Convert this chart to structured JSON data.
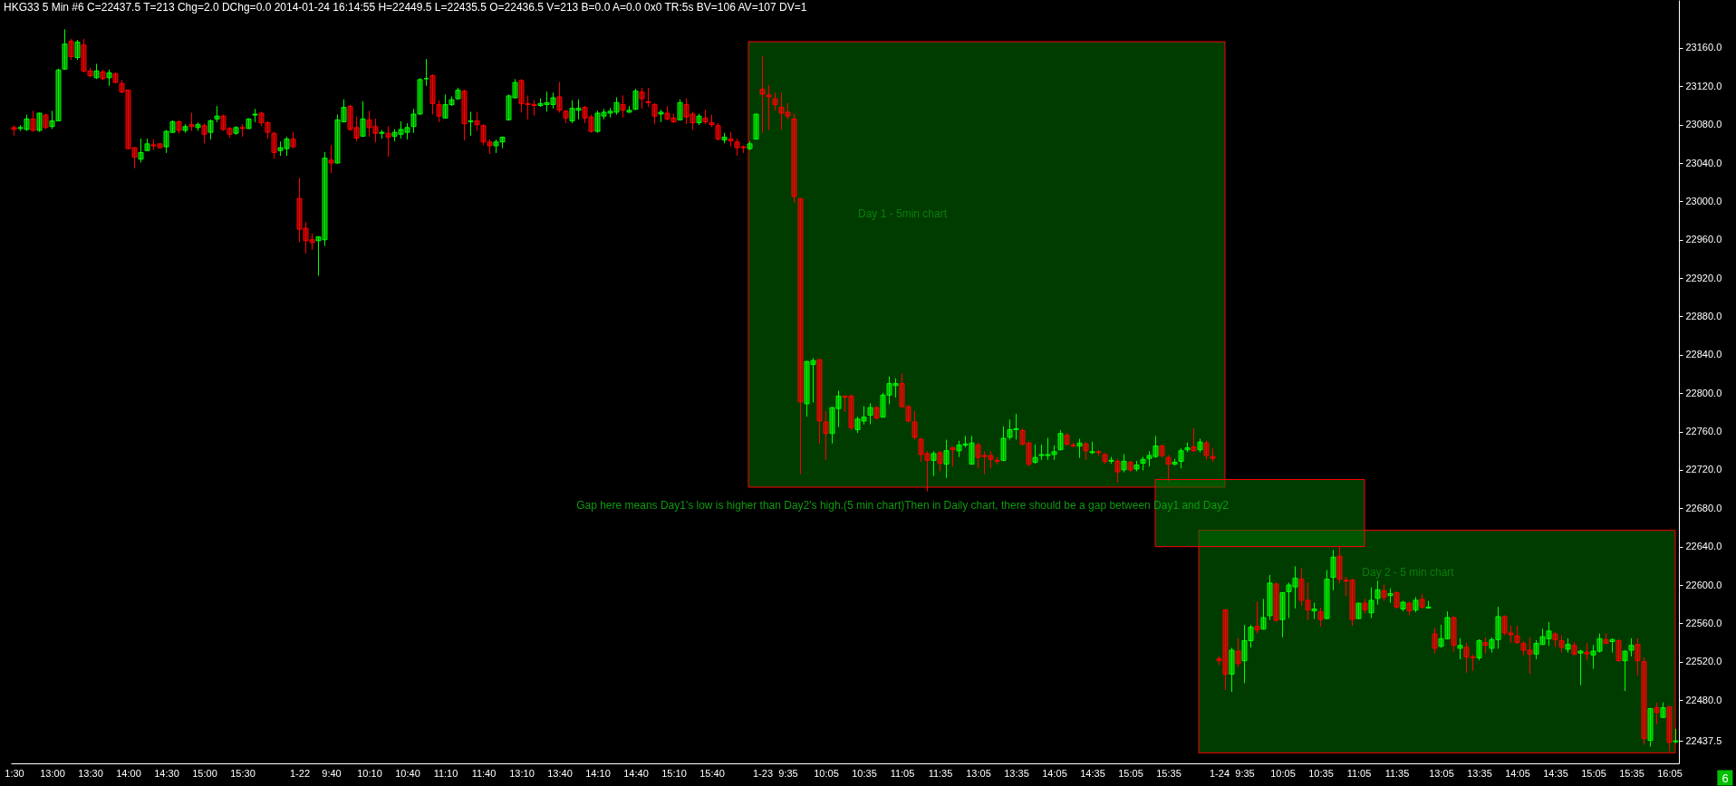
{
  "chart_data": {
    "type": "candlestick",
    "title": "HKG33 5 Min #6 C=22437.5 T=213 Chg=2.0 DChg=0.0 2014-01-24 16:14:55 H=22449.5 L=22435.5 O=22436.5 V=213 B=0.0 A=0.0 0x0 TR:5s BV=106 AV=107 DV=1",
    "categories": [
      "1:30",
      null,
      null,
      null,
      null,
      null,
      "13:00",
      null,
      null,
      null,
      null,
      null,
      "13:30",
      null,
      null,
      null,
      null,
      null,
      "14:00",
      null,
      null,
      null,
      null,
      null,
      "14:30",
      null,
      null,
      null,
      null,
      null,
      "15:00",
      null,
      null,
      null,
      null,
      null,
      "15:30",
      null,
      null,
      null,
      null,
      null,
      null,
      null,
      null,
      "1-22",
      null,
      null,
      null,
      null,
      "9:40",
      null,
      null,
      null,
      null,
      null,
      "10:10",
      null,
      null,
      null,
      null,
      null,
      "10:40",
      null,
      null,
      null,
      null,
      null,
      "11:10",
      null,
      null,
      null,
      null,
      null,
      "11:40",
      null,
      null,
      null,
      null,
      null,
      "13:10",
      null,
      null,
      null,
      null,
      null,
      "13:40",
      null,
      null,
      null,
      null,
      null,
      "14:10",
      null,
      null,
      null,
      null,
      null,
      "14:40",
      null,
      null,
      null,
      null,
      null,
      "15:10",
      null,
      null,
      null,
      null,
      null,
      "15:40",
      null,
      null,
      null,
      null,
      null,
      null,
      null,
      "1-23",
      null,
      null,
      null,
      "9:35",
      null,
      null,
      null,
      null,
      null,
      "10:05",
      null,
      null,
      null,
      null,
      null,
      "10:35",
      null,
      null,
      null,
      null,
      null,
      "11:05",
      null,
      null,
      null,
      null,
      null,
      "11:35",
      null,
      null,
      null,
      null,
      null,
      "13:05",
      null,
      null,
      null,
      null,
      null,
      "13:35",
      null,
      null,
      null,
      null,
      null,
      "14:05",
      null,
      null,
      null,
      null,
      null,
      "14:35",
      null,
      null,
      null,
      null,
      null,
      "15:05",
      null,
      null,
      null,
      null,
      null,
      "15:35",
      null,
      null,
      null,
      null,
      null,
      null,
      null,
      "1-24",
      null,
      null,
      null,
      "9:35",
      null,
      null,
      null,
      null,
      null,
      "10:05",
      null,
      null,
      null,
      null,
      null,
      "10:35",
      null,
      null,
      null,
      null,
      null,
      "11:05",
      null,
      null,
      null,
      null,
      null,
      "11:35",
      null,
      null,
      null,
      null,
      null,
      null,
      "13:05",
      null,
      null,
      null,
      null,
      null,
      "13:35",
      null,
      null,
      null,
      null,
      null,
      "14:05",
      null,
      null,
      null,
      null,
      null,
      "14:35",
      null,
      null,
      null,
      null,
      null,
      "15:05",
      null,
      null,
      null,
      null,
      null,
      "15:35",
      null,
      null,
      null,
      null,
      null,
      "16:05",
      null
    ],
    "ohlc": [
      [
        23077,
        23079,
        23069,
        23075
      ],
      [
        23076,
        23079,
        23074,
        23077
      ],
      [
        23075,
        23090,
        23074,
        23086
      ],
      [
        23086,
        23094,
        23073,
        23074
      ],
      [
        23074,
        23092,
        23073,
        23092
      ],
      [
        23090,
        23091,
        23076,
        23077
      ],
      [
        23078,
        23094,
        23076,
        23084
      ],
      [
        23084,
        23138,
        23084,
        23137
      ],
      [
        23138,
        23179,
        23138,
        23164
      ],
      [
        23167,
        23169,
        23148,
        23151
      ],
      [
        23150,
        23168,
        23148,
        23166
      ],
      [
        23163,
        23169,
        23135,
        23136
      ],
      [
        23136,
        23139,
        23130,
        23131
      ],
      [
        23129,
        23143,
        23128,
        23136
      ],
      [
        23135,
        23137,
        23127,
        23128
      ],
      [
        23129,
        23137,
        23121,
        23134
      ],
      [
        23133,
        23134,
        23124,
        23124
      ],
      [
        23123,
        23126,
        23113,
        23114
      ],
      [
        23116,
        23116,
        23055,
        23055
      ],
      [
        23056,
        23056,
        23035,
        23046
      ],
      [
        23044,
        23065,
        23041,
        23051
      ],
      [
        23053,
        23065,
        23053,
        23060
      ],
      [
        23059,
        23064,
        23054,
        23058
      ],
      [
        23060,
        23060,
        23056,
        23056
      ],
      [
        23057,
        23074,
        23051,
        23073
      ],
      [
        23072,
        23084,
        23072,
        23083
      ],
      [
        23083,
        23084,
        23071,
        23074
      ],
      [
        23074,
        23080,
        23072,
        23078
      ],
      [
        23080,
        23092,
        23074,
        23078
      ],
      [
        23077,
        23082,
        23074,
        23080
      ],
      [
        23079,
        23081,
        23061,
        23070
      ],
      [
        23072,
        23085,
        23065,
        23084
      ],
      [
        23086,
        23099,
        23083,
        23089
      ],
      [
        23089,
        23090,
        23074,
        23075
      ],
      [
        23076,
        23077,
        23067,
        23070
      ],
      [
        23071,
        23078,
        23070,
        23077
      ],
      [
        23077,
        23080,
        23068,
        23076
      ],
      [
        23076,
        23086,
        23076,
        23086
      ],
      [
        23090,
        23096,
        23083,
        23091
      ],
      [
        23092,
        23093,
        23079,
        23082
      ],
      [
        23082,
        23083,
        23066,
        23072
      ],
      [
        23071,
        23072,
        23045,
        23051
      ],
      [
        23053,
        23062,
        23048,
        23056
      ],
      [
        23055,
        23067,
        23048,
        23065
      ],
      [
        23065,
        23072,
        23056,
        23057
      ],
      [
        23003,
        23024,
        22958,
        22971
      ],
      [
        22972,
        22978,
        22946,
        22959
      ],
      [
        22960,
        22966,
        22950,
        22957
      ],
      [
        22959,
        22963,
        22923,
        22963
      ],
      [
        22960,
        23051,
        22954,
        23045
      ],
      [
        23043,
        23058,
        23030,
        23040
      ],
      [
        23040,
        23090,
        23040,
        23085
      ],
      [
        23083,
        23106,
        23083,
        23098
      ],
      [
        23099,
        23100,
        23074,
        23075
      ],
      [
        23077,
        23088,
        23063,
        23066
      ],
      [
        23068,
        23104,
        23068,
        23086
      ],
      [
        23085,
        23094,
        23068,
        23077
      ],
      [
        23078,
        23086,
        23062,
        23071
      ],
      [
        23071,
        23074,
        23066,
        23072
      ],
      [
        23071,
        23078,
        23047,
        23067
      ],
      [
        23068,
        23075,
        23063,
        23072
      ],
      [
        23070,
        23083,
        23066,
        23075
      ],
      [
        23072,
        23081,
        23065,
        23077
      ],
      [
        23078,
        23096,
        23072,
        23091
      ],
      [
        23091,
        23128,
        23091,
        23127
      ],
      [
        23128,
        23148,
        23121,
        23128
      ],
      [
        23131,
        23132,
        23091,
        23102
      ],
      [
        23101,
        23105,
        23083,
        23089
      ],
      [
        23087,
        23111,
        23087,
        23101
      ],
      [
        23101,
        23109,
        23100,
        23106
      ],
      [
        23107,
        23118,
        23107,
        23116
      ],
      [
        23115,
        23116,
        23064,
        23081
      ],
      [
        23083,
        23093,
        23069,
        23084
      ],
      [
        23084,
        23093,
        23074,
        23080
      ],
      [
        23079,
        23080,
        23059,
        23062
      ],
      [
        23062,
        23064,
        23050,
        23058
      ],
      [
        23058,
        23064,
        23051,
        23062
      ],
      [
        23062,
        23067,
        23056,
        23067
      ],
      [
        23085,
        23111,
        23085,
        23110
      ],
      [
        23108,
        23127,
        23108,
        23124
      ],
      [
        23126,
        23127,
        23093,
        23102
      ],
      [
        23102,
        23110,
        23086,
        23101
      ],
      [
        23101,
        23105,
        23090,
        23100
      ],
      [
        23100,
        23107,
        23099,
        23102
      ],
      [
        23101,
        23114,
        23094,
        23103
      ],
      [
        23101,
        23113,
        23097,
        23108
      ],
      [
        23109,
        23124,
        23093,
        23095
      ],
      [
        23094,
        23095,
        23082,
        23087
      ],
      [
        23084,
        23105,
        23082,
        23097
      ],
      [
        23095,
        23106,
        23086,
        23097
      ],
      [
        23098,
        23099,
        23082,
        23087
      ],
      [
        23088,
        23090,
        23072,
        23073
      ],
      [
        23073,
        23094,
        23072,
        23092
      ],
      [
        23089,
        23096,
        23086,
        23093
      ],
      [
        23092,
        23097,
        23088,
        23094
      ],
      [
        23093,
        23108,
        23091,
        23103
      ],
      [
        23101,
        23110,
        23088,
        23095
      ],
      [
        23093,
        23099,
        23093,
        23095
      ],
      [
        23096,
        23117,
        23096,
        23115
      ],
      [
        23114,
        23118,
        23097,
        23107
      ],
      [
        23104,
        23118,
        23099,
        23103
      ],
      [
        23101,
        23102,
        23081,
        23089
      ],
      [
        23091,
        23095,
        23083,
        23093
      ],
      [
        23092,
        23099,
        23085,
        23086
      ],
      [
        23087,
        23091,
        23082,
        23083
      ],
      [
        23085,
        23106,
        23085,
        23103
      ],
      [
        23101,
        23107,
        23081,
        23088
      ],
      [
        23091,
        23093,
        23075,
        23082
      ],
      [
        23082,
        23091,
        23080,
        23089
      ],
      [
        23087,
        23095,
        23081,
        23083
      ],
      [
        23082,
        23090,
        23078,
        23080
      ],
      [
        23079,
        23081,
        23064,
        23065
      ],
      [
        23064,
        23071,
        23061,
        23067
      ],
      [
        23065,
        23072,
        23058,
        23063
      ],
      [
        23062,
        23065,
        23048,
        23056
      ],
      [
        23057,
        23058,
        23051,
        23056
      ],
      [
        23055,
        23062,
        23054,
        23060
      ],
      [
        23065,
        23091,
        23065,
        23091
      ],
      [
        23117,
        23151,
        23072,
        23112
      ],
      [
        23111,
        23121,
        23075,
        23109
      ],
      [
        23107,
        23113,
        23095,
        23101
      ],
      [
        23098,
        23113,
        23075,
        23092
      ],
      [
        23093,
        23102,
        23086,
        23089
      ],
      [
        23086,
        23091,
        22999,
        23005
      ],
      [
        23003,
        23003,
        22716,
        22791
      ],
      [
        22789,
        22833,
        22776,
        22833
      ],
      [
        22830,
        22836,
        22791,
        22834
      ],
      [
        22835,
        22835,
        22748,
        22771
      ],
      [
        22770,
        22781,
        22731,
        22758
      ],
      [
        22758,
        22785,
        22748,
        22785
      ],
      [
        22784,
        22802,
        22765,
        22797
      ],
      [
        22797,
        22797,
        22781,
        22796
      ],
      [
        22797,
        22798,
        22762,
        22764
      ],
      [
        22762,
        22775,
        22759,
        22773
      ],
      [
        22771,
        22786,
        22768,
        22775
      ],
      [
        22777,
        22789,
        22768,
        22785
      ],
      [
        22785,
        22786,
        22773,
        22774
      ],
      [
        22775,
        22800,
        22775,
        22798
      ],
      [
        22798,
        22817,
        22789,
        22810
      ],
      [
        22808,
        22815,
        22796,
        22810
      ],
      [
        22810,
        22820,
        22785,
        22786
      ],
      [
        22786,
        22787,
        22770,
        22771
      ],
      [
        22770,
        22781,
        22752,
        22754
      ],
      [
        22752,
        22753,
        22729,
        22736
      ],
      [
        22737,
        22739,
        22698,
        22730
      ],
      [
        22730,
        22739,
        22714,
        22737
      ],
      [
        22738,
        22739,
        22719,
        22727
      ],
      [
        22726,
        22751,
        22712,
        22740
      ],
      [
        22743,
        22744,
        22724,
        22741
      ],
      [
        22740,
        22750,
        22734,
        22746
      ],
      [
        22746,
        22755,
        22744,
        22747
      ],
      [
        22726,
        22755,
        22726,
        22748
      ],
      [
        22746,
        22748,
        22722,
        22733
      ],
      [
        22735,
        22739,
        22716,
        22734
      ],
      [
        22735,
        22739,
        22722,
        22731
      ],
      [
        22730,
        22733,
        22726,
        22729
      ],
      [
        22730,
        22765,
        22730,
        22753
      ],
      [
        22754,
        22772,
        22752,
        22762
      ],
      [
        22762,
        22778,
        22752,
        22763
      ],
      [
        22761,
        22763,
        22746,
        22747
      ],
      [
        22748,
        22749,
        22724,
        22726
      ],
      [
        22728,
        22746,
        22727,
        22733
      ],
      [
        22735,
        22746,
        22731,
        22736
      ],
      [
        22735,
        22753,
        22731,
        22736
      ],
      [
        22736,
        22745,
        22731,
        22739
      ],
      [
        22741,
        22761,
        22741,
        22758
      ],
      [
        22756,
        22758,
        22746,
        22747
      ],
      [
        22746,
        22748,
        22744,
        22745
      ],
      [
        22745,
        22752,
        22733,
        22748
      ],
      [
        22747,
        22749,
        22731,
        22740
      ],
      [
        22738,
        22749,
        22737,
        22739
      ],
      [
        22739,
        22740,
        22735,
        22738
      ],
      [
        22736,
        22737,
        22727,
        22729
      ],
      [
        22729,
        22733,
        22727,
        22730
      ],
      [
        22729,
        22731,
        22707,
        22718
      ],
      [
        22720,
        22736,
        22718,
        22729
      ],
      [
        22728,
        22729,
        22718,
        22720
      ],
      [
        22721,
        22729,
        22719,
        22725
      ],
      [
        22727,
        22733,
        22720,
        22731
      ],
      [
        22732,
        22739,
        22724,
        22735
      ],
      [
        22734,
        22755,
        22733,
        22745
      ],
      [
        22745,
        22746,
        22733,
        22735
      ],
      [
        22733,
        22735,
        22709,
        22726
      ],
      [
        22726,
        22731,
        22725,
        22728
      ],
      [
        22729,
        22742,
        22722,
        22740
      ],
      [
        22741,
        22748,
        22739,
        22743
      ],
      [
        22744,
        22763,
        22739,
        22740
      ],
      [
        22741,
        22752,
        22739,
        22749
      ],
      [
        22748,
        22750,
        22731,
        22735
      ],
      [
        22734,
        22742,
        22729,
        22732
      ],
      [
        22523,
        22525,
        22517,
        22521
      ],
      [
        22574,
        22574,
        22491,
        22507
      ],
      [
        22507,
        22534,
        22489,
        22532
      ],
      [
        22531,
        22544,
        22515,
        22518
      ],
      [
        22521,
        22558,
        22498,
        22542
      ],
      [
        22542,
        22558,
        22535,
        22556
      ],
      [
        22557,
        22582,
        22550,
        22553
      ],
      [
        22554,
        22585,
        22554,
        22566
      ],
      [
        22568,
        22610,
        22564,
        22602
      ],
      [
        22601,
        22602,
        22563,
        22563
      ],
      [
        22564,
        22592,
        22546,
        22592
      ],
      [
        22593,
        22602,
        22566,
        22600
      ],
      [
        22598,
        22619,
        22576,
        22607
      ],
      [
        22606,
        22617,
        22579,
        22584
      ],
      [
        22584,
        22602,
        22564,
        22574
      ],
      [
        22573,
        22581,
        22565,
        22575
      ],
      [
        22572,
        22576,
        22557,
        22564
      ],
      [
        22565,
        22615,
        22565,
        22606
      ],
      [
        22608,
        22636,
        22595,
        22629
      ],
      [
        22630,
        22640,
        22602,
        22606
      ],
      [
        22605,
        22608,
        22589,
        22604
      ],
      [
        22605,
        22606,
        22558,
        22564
      ],
      [
        22565,
        22581,
        22565,
        22581
      ],
      [
        22581,
        22585,
        22571,
        22574
      ],
      [
        22571,
        22597,
        22566,
        22584
      ],
      [
        22586,
        22604,
        22580,
        22595
      ],
      [
        22594,
        22600,
        22584,
        22587
      ],
      [
        22589,
        22596,
        22582,
        22591
      ],
      [
        22592,
        22593,
        22576,
        22577
      ],
      [
        22575,
        22583,
        22573,
        22582
      ],
      [
        22581,
        22582,
        22569,
        22573
      ],
      [
        22574,
        22587,
        22572,
        22584
      ],
      [
        22585,
        22590,
        22576,
        22577
      ],
      [
        22576,
        22583,
        22576,
        22577
      ],
      [
        22549,
        22555,
        22529,
        22534
      ],
      [
        22536,
        22558,
        22535,
        22544
      ],
      [
        22544,
        22572,
        22544,
        22566
      ],
      [
        22566,
        22567,
        22531,
        22537
      ],
      [
        22534,
        22544,
        22523,
        22537
      ],
      [
        22535,
        22539,
        22509,
        22525
      ],
      [
        22525,
        22527,
        22511,
        22524
      ],
      [
        22524,
        22543,
        22522,
        22542
      ],
      [
        22540,
        22545,
        22529,
        22537
      ],
      [
        22534,
        22545,
        22530,
        22543
      ],
      [
        22543,
        22577,
        22534,
        22567
      ],
      [
        22567,
        22568,
        22548,
        22550
      ],
      [
        22550,
        22557,
        22540,
        22548
      ],
      [
        22547,
        22557,
        22539,
        22540
      ],
      [
        22539,
        22541,
        22527,
        22532
      ],
      [
        22532,
        22545,
        22508,
        22528
      ],
      [
        22528,
        22542,
        22523,
        22539
      ],
      [
        22538,
        22554,
        22538,
        22546
      ],
      [
        22544,
        22561,
        22537,
        22552
      ],
      [
        22549,
        22550,
        22536,
        22543
      ],
      [
        22542,
        22547,
        22530,
        22535
      ],
      [
        22533,
        22544,
        22530,
        22538
      ],
      [
        22537,
        22540,
        22527,
        22528
      ],
      [
        22529,
        22532,
        22496,
        22531
      ],
      [
        22530,
        22539,
        22522,
        22528
      ],
      [
        22527,
        22537,
        22513,
        22531
      ],
      [
        22531,
        22549,
        22530,
        22544
      ],
      [
        22543,
        22549,
        22539,
        22539
      ],
      [
        22541,
        22544,
        22530,
        22543
      ],
      [
        22542,
        22543,
        22521,
        22521
      ],
      [
        22521,
        22531,
        22490,
        22531
      ],
      [
        22532,
        22544,
        22526,
        22537
      ],
      [
        22538,
        22544,
        22506,
        22521
      ],
      [
        22520,
        22524,
        22434,
        22440
      ],
      [
        22438,
        22471,
        22432,
        22471
      ],
      [
        22472,
        22477,
        22455,
        22467
      ],
      [
        22462,
        22477,
        22462,
        22472
      ],
      [
        22473,
        22473,
        22427,
        22436
      ],
      [
        22436.5,
        22449.5,
        22435.5,
        22437.5
      ]
    ],
    "colors": [
      "#ff0000",
      "#00ff00",
      "#00ff00",
      "#ff0000",
      "#00ff00",
      "#ff0000",
      "#00ff00",
      "#00ff00",
      "#00ff00",
      "#ff0000",
      "#00ff00",
      "#ff0000",
      "#ff0000",
      "#00ff00",
      "#ff0000",
      "#00ff00",
      "#ff0000",
      "#ff0000",
      "#ff0000",
      "#ff0000",
      "#00ff00",
      "#00ff00",
      "#ff0000",
      "#ff0000",
      "#00ff00",
      "#00ff00",
      "#ff0000",
      "#00ff00",
      "#ff0000",
      "#00ff00",
      "#ff0000",
      "#00ff00",
      "#00ff00",
      "#ff0000",
      "#ff0000",
      "#00ff00",
      "#ff0000",
      "#00ff00",
      "#00ff00",
      "#ff0000",
      "#ff0000",
      "#ff0000",
      "#00ff00",
      "#00ff00",
      "#ff0000",
      "#ff0000",
      "#ff0000",
      "#ff0000",
      "#00ff00",
      "#00ff00",
      "#ff0000",
      "#00ff00",
      "#00ff00",
      "#ff0000",
      "#ff0000",
      "#00ff00",
      "#ff0000",
      "#ff0000",
      "#00ff00",
      "#ff0000",
      "#00ff00",
      "#00ff00",
      "#00ff00",
      "#00ff00",
      "#00ff00",
      "#00ff00",
      "#ff0000",
      "#ff0000",
      "#00ff00",
      "#00ff00",
      "#00ff00",
      "#ff0000",
      "#00ff00",
      "#ff0000",
      "#ff0000",
      "#ff0000",
      "#00ff00",
      "#00ff00",
      "#00ff00",
      "#00ff00",
      "#ff0000",
      "#ff0000",
      "#ff0000",
      "#00ff00",
      "#00ff00",
      "#00ff00",
      "#ff0000",
      "#ff0000",
      "#00ff00",
      "#00ff00",
      "#ff0000",
      "#ff0000",
      "#00ff00",
      "#00ff00",
      "#00ff00",
      "#00ff00",
      "#ff0000",
      "#00ff00",
      "#00ff00",
      "#ff0000",
      "#ff0000",
      "#ff0000",
      "#00ff00",
      "#ff0000",
      "#ff0000",
      "#00ff00",
      "#ff0000",
      "#ff0000",
      "#00ff00",
      "#ff0000",
      "#ff0000",
      "#ff0000",
      "#00ff00",
      "#ff0000",
      "#ff0000",
      "#ff0000",
      "#00ff00",
      "#00ff00",
      "#ff0000",
      "#ff0000",
      "#ff0000",
      "#ff0000",
      "#ff0000",
      "#ff0000",
      "#ff0000",
      "#00ff00",
      "#00ff00",
      "#ff0000",
      "#ff0000",
      "#00ff00",
      "#00ff00",
      "#ff0000",
      "#ff0000",
      "#00ff00",
      "#00ff00",
      "#00ff00",
      "#ff0000",
      "#00ff00",
      "#00ff00",
      "#00ff00",
      "#ff0000",
      "#ff0000",
      "#ff0000",
      "#ff0000",
      "#ff0000",
      "#00ff00",
      "#ff0000",
      "#00ff00",
      "#ff0000",
      "#00ff00",
      "#00ff00",
      "#00ff00",
      "#ff0000",
      "#ff0000",
      "#ff0000",
      "#ff0000",
      "#00ff00",
      "#00ff00",
      "#00ff00",
      "#ff0000",
      "#ff0000",
      "#00ff00",
      "#00ff00",
      "#00ff00",
      "#00ff00",
      "#00ff00",
      "#ff0000",
      "#ff0000",
      "#00ff00",
      "#ff0000",
      "#00ff00",
      "#ff0000",
      "#ff0000",
      "#00ff00",
      "#ff0000",
      "#00ff00",
      "#ff0000",
      "#00ff00",
      "#00ff00",
      "#00ff00",
      "#00ff00",
      "#ff0000",
      "#ff0000",
      "#00ff00",
      "#00ff00",
      "#00ff00",
      "#ff0000",
      "#00ff00",
      "#ff0000",
      "#ff0000",
      "#ff0000",
      "#ff0000",
      "#00ff00",
      "#ff0000",
      "#00ff00",
      "#00ff00",
      "#ff0000",
      "#00ff00",
      "#00ff00",
      "#ff0000",
      "#00ff00",
      "#00ff00",
      "#00ff00",
      "#ff0000",
      "#ff0000",
      "#00ff00",
      "#ff0000",
      "#00ff00",
      "#00ff00",
      "#ff0000",
      "#ff0000",
      "#ff0000",
      "#00ff00",
      "#ff0000",
      "#00ff00",
      "#00ff00",
      "#ff0000",
      "#00ff00",
      "#ff0000",
      "#00ff00",
      "#ff0000",
      "#00ff00",
      "#ff0000",
      "#00ff00",
      "#ff0000",
      "#00ff00",
      "#00ff00",
      "#ff0000",
      "#00ff00",
      "#ff0000",
      "#ff0000",
      "#00ff00",
      "#ff0000",
      "#00ff00",
      "#00ff00",
      "#ff0000",
      "#ff0000",
      "#ff0000",
      "#ff0000",
      "#ff0000",
      "#00ff00",
      "#00ff00",
      "#00ff00",
      "#ff0000",
      "#ff0000",
      "#00ff00",
      "#ff0000",
      "#00ff00",
      "#ff0000",
      "#00ff00",
      "#00ff00",
      "#ff0000",
      "#00ff00",
      "#ff0000",
      "#00ff00",
      "#00ff00",
      "#ff0000",
      "#ff0000",
      "#00ff00",
      "#ff0000",
      "#00ff00",
      "#ff0000",
      "#00ff00"
    ],
    "ylim": [
      22414,
      23210
    ],
    "yticks": [
      {
        "value": 22437.5,
        "label": "22437.5"
      },
      {
        "value": 22480,
        "label": "22480.0"
      },
      {
        "value": 22520,
        "label": "22520.0"
      },
      {
        "value": 22560,
        "label": "22560.0"
      },
      {
        "value": 22600,
        "label": "22600.0"
      },
      {
        "value": 22640,
        "label": "22640.0"
      },
      {
        "value": 22680,
        "label": "22680.0"
      },
      {
        "value": 22720,
        "label": "22720.0"
      },
      {
        "value": 22760,
        "label": "22760.0"
      },
      {
        "value": 22800,
        "label": "22800.0"
      },
      {
        "value": 22840,
        "label": "22840.0"
      },
      {
        "value": 22880,
        "label": "22880.0"
      },
      {
        "value": 22920,
        "label": "22920.0"
      },
      {
        "value": 22960,
        "label": "22960.0"
      },
      {
        "value": 23000,
        "label": "23000.0"
      },
      {
        "value": 23040,
        "label": "23040.0"
      },
      {
        "value": 23080,
        "label": "23080.0"
      },
      {
        "value": 23120,
        "label": "23120.0"
      },
      {
        "value": 23160,
        "label": "23160.0"
      }
    ],
    "bands": [
      {
        "axis": "y",
        "from": 22425,
        "to": 22657,
        "color": "#006e00"
      },
      {
        "axis": "y",
        "from": 22640,
        "to": 22710,
        "color": "#006e00"
      }
    ],
    "annotations": [
      "Day 1 - 5min chart",
      "Gap here means Day1's low is higher than Day2's high.(5 min chart)Then in Daily chart, there should be a gap between Day1 and Day2",
      "Day 2 - 5 min chart",
      "6"
    ]
  }
}
